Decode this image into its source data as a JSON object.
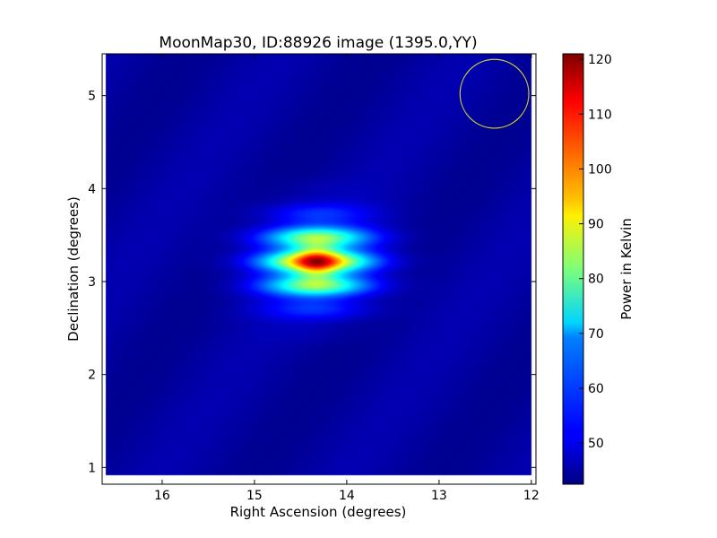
{
  "chart_data": {
    "type": "heatmap",
    "title": "MoonMap30, ID:88926 image (1395.0,YY)",
    "xlabel": "Right Ascension (degrees)",
    "ylabel": "Declination (degrees)",
    "xlim": [
      16.65,
      11.95
    ],
    "ylim": [
      0.82,
      5.45
    ],
    "x_inverted": true,
    "xticks": [
      16,
      15,
      14,
      13,
      12
    ],
    "yticks": [
      1,
      2,
      3,
      4,
      5
    ],
    "grid": false,
    "colormap": "jet",
    "colorbar": {
      "label": "Power in Kelvin",
      "min": 42.5,
      "max": 121,
      "ticks": [
        50,
        60,
        70,
        80,
        90,
        100,
        110,
        120
      ]
    },
    "background_level_kelvin": 45,
    "peak": {
      "ra": 14.33,
      "dec": 3.22,
      "value": 120
    },
    "map_extent": {
      "ra": [
        16.62,
        12.0
      ],
      "dec": [
        0.92,
        5.45
      ]
    },
    "beam_circle": {
      "ra": 12.4,
      "dec": 5.02,
      "radius_deg": 0.37,
      "color": "#cccc33"
    }
  },
  "colors": {
    "background": "#ffffff",
    "axes": "#000000",
    "beam_circle": "#cccc33",
    "low": "#00007f",
    "high": "#7f0000"
  }
}
